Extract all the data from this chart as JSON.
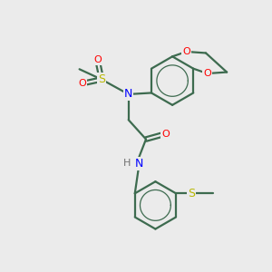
{
  "bg_color": "#ebebeb",
  "atom_colors": {
    "C": "#3d6b4f",
    "N": "#0000ff",
    "O": "#ff0000",
    "S": "#b8b800",
    "H": "#707070"
  },
  "bond_color": "#3d6b4f",
  "bond_width": 1.6,
  "figsize": [
    3.0,
    3.0
  ],
  "dpi": 100
}
